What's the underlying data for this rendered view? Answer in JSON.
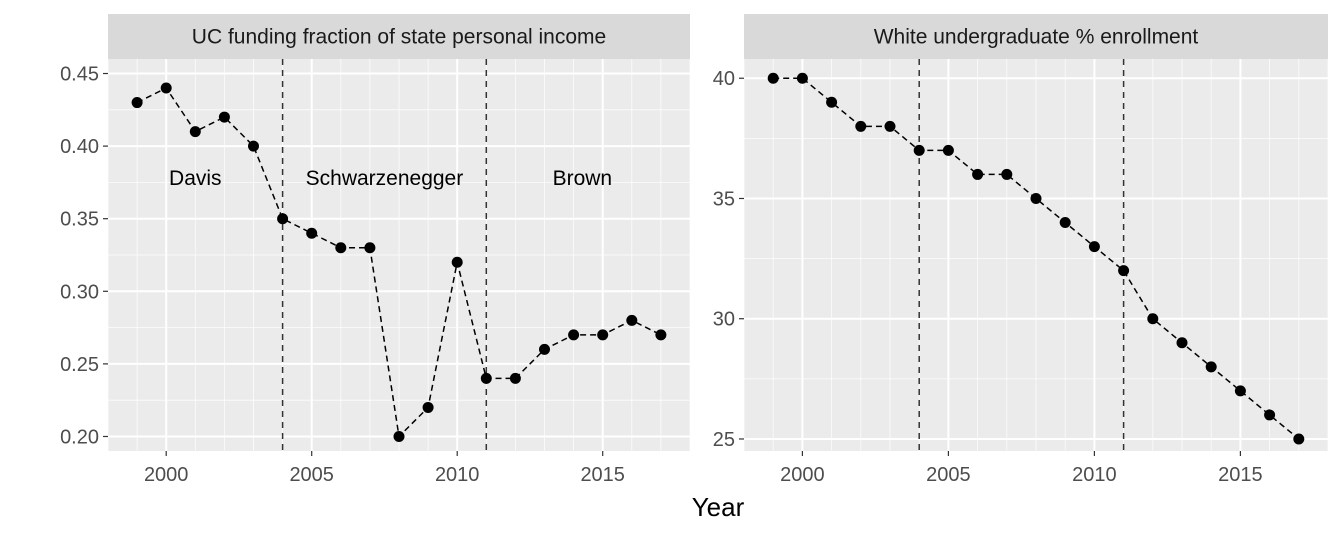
{
  "chart_data": [
    {
      "type": "line",
      "title": "UC funding fraction of state personal income",
      "xlabel": "Year",
      "ylabel": "",
      "xlim": [
        1998,
        2018
      ],
      "ylim": [
        0.19,
        0.46
      ],
      "x_ticks": [
        2000,
        2005,
        2010,
        2015
      ],
      "y_ticks": [
        0.2,
        0.25,
        0.3,
        0.35,
        0.4,
        0.45
      ],
      "y_tick_labels": [
        "0.20",
        "0.25",
        "0.30",
        "0.35",
        "0.40",
        "0.45"
      ],
      "grid": true,
      "line_style": "dashed",
      "series": [
        {
          "x": [
            1999,
            2000,
            2001,
            2002,
            2003,
            2004,
            2005,
            2006,
            2007,
            2008,
            2009,
            2010,
            2011,
            2012,
            2013,
            2014,
            2015,
            2016,
            2017
          ],
          "y": [
            0.43,
            0.44,
            0.41,
            0.42,
            0.4,
            0.35,
            0.34,
            0.33,
            0.33,
            0.2,
            0.22,
            0.32,
            0.24,
            0.24,
            0.26,
            0.27,
            0.27,
            0.28,
            0.27
          ]
        }
      ],
      "vlines": [
        2004,
        2011
      ],
      "annotations": [
        {
          "text": "Davis",
          "x": 2001,
          "y": 0.378
        },
        {
          "text": "Schwarzenegger",
          "x": 2007.5,
          "y": 0.378
        },
        {
          "text": "Brown",
          "x": 2014.3,
          "y": 0.378
        }
      ]
    },
    {
      "type": "line",
      "title": "White undergraduate % enrollment",
      "xlabel": "Year",
      "ylabel": "",
      "xlim": [
        1998,
        2018
      ],
      "ylim": [
        24.5,
        40.8
      ],
      "x_ticks": [
        2000,
        2005,
        2010,
        2015
      ],
      "y_ticks": [
        25,
        30,
        35,
        40
      ],
      "y_tick_labels": [
        "25",
        "30",
        "35",
        "40"
      ],
      "grid": true,
      "line_style": "dashed",
      "series": [
        {
          "x": [
            1999,
            2000,
            2001,
            2002,
            2003,
            2004,
            2005,
            2006,
            2007,
            2008,
            2009,
            2010,
            2011,
            2012,
            2013,
            2014,
            2015,
            2016,
            2017
          ],
          "y": [
            40,
            40,
            39,
            38,
            38,
            37,
            37,
            36,
            36,
            35,
            34,
            33,
            32,
            30,
            29,
            28,
            27,
            26,
            25
          ]
        }
      ],
      "vlines": [
        2004,
        2011
      ],
      "annotations": []
    }
  ],
  "shared_xlabel": "Year",
  "colors": {
    "panel_bg": "#ebebeb",
    "strip_bg": "#d9d9d9",
    "grid_major": "#ffffff",
    "tick_text": "#4d4d4d",
    "points": "#000000"
  }
}
